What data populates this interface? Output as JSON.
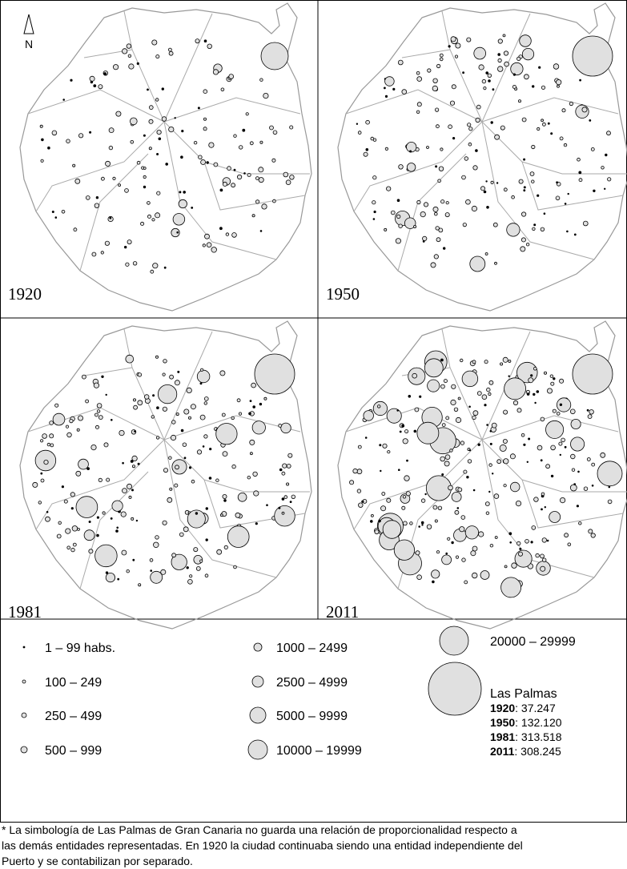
{
  "north": "N",
  "panels": [
    "1920",
    "1950",
    "1981",
    "2011"
  ],
  "legend": [
    "1 – 99 habs.",
    "100 – 249",
    "250 – 499",
    "500 – 999",
    "1000 – 2499",
    "2500 – 4999",
    "5000 – 9999",
    "10000 – 19999",
    "20000 – 29999"
  ],
  "las_palmas": {
    "title": "Las Palmas",
    "entries": [
      {
        "year": "1920",
        "value": ": 37.247"
      },
      {
        "year": "1950",
        "value": ": 132.120"
      },
      {
        "year": "1981",
        "value": ": 313.518"
      },
      {
        "year": "2011",
        "value": ": 308.245"
      }
    ]
  },
  "footnote": [
    "* La simbología de Las Palmas de Gran Canaria no guarda una relación de proporcionalidad respecto a",
    "las demás entidades representadas. En 1920 la ciudad continuaba siendo una entidad independiente del",
    "Puerto y se contabilizan por separado."
  ]
}
